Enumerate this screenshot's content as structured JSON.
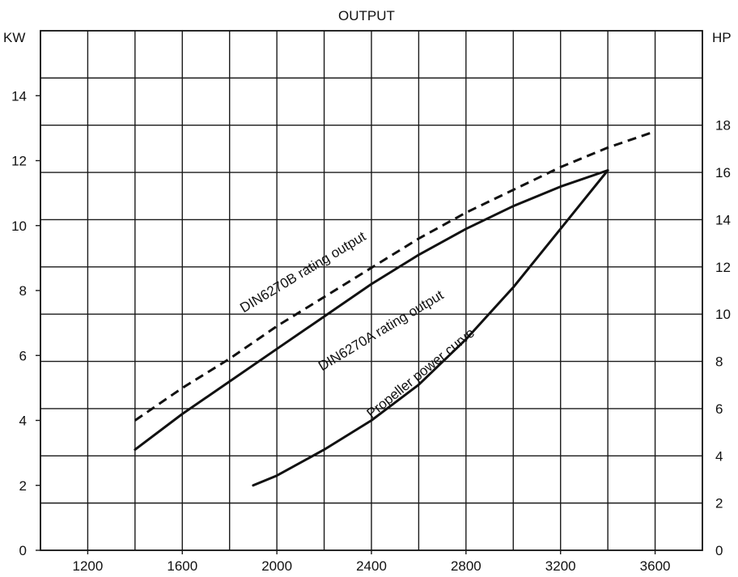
{
  "chart_data": {
    "type": "line",
    "title": "OUTPUT",
    "xlabel": "",
    "ylabel_left": "KW",
    "ylabel_right": "HP",
    "xlim": [
      1000,
      3800
    ],
    "ylim_left": [
      0,
      16
    ],
    "ylim_right": [
      0,
      22
    ],
    "x_ticks": [
      1200,
      1600,
      2000,
      2400,
      2800,
      3200,
      3600
    ],
    "y_ticks_left": [
      0,
      2,
      4,
      6,
      8,
      10,
      12,
      14
    ],
    "y_ticks_right": [
      0,
      2,
      4,
      6,
      8,
      10,
      12,
      14,
      16,
      18
    ],
    "grid": true,
    "series": [
      {
        "name": "DIN6270B rating output",
        "style": "dashed",
        "x": [
          1400,
          1600,
          1800,
          2000,
          2200,
          2400,
          2600,
          2800,
          3000,
          3200,
          3400,
          3600
        ],
        "y": [
          4.0,
          5.0,
          5.9,
          6.9,
          7.8,
          8.7,
          9.6,
          10.4,
          11.1,
          11.8,
          12.4,
          12.9
        ]
      },
      {
        "name": "DIN6270A rating output",
        "style": "solid",
        "x": [
          1400,
          1600,
          1800,
          2000,
          2200,
          2400,
          2600,
          2800,
          3000,
          3200,
          3400
        ],
        "y": [
          3.1,
          4.2,
          5.2,
          6.2,
          7.2,
          8.2,
          9.1,
          9.9,
          10.6,
          11.2,
          11.7
        ]
      },
      {
        "name": "Propeller power curve",
        "style": "solid",
        "x": [
          1900,
          2000,
          2200,
          2400,
          2600,
          2800,
          3000,
          3200,
          3400
        ],
        "y": [
          2.0,
          2.3,
          3.1,
          4.0,
          5.1,
          6.5,
          8.1,
          9.9,
          11.7
        ]
      }
    ],
    "annotations": [
      {
        "text": "DIN6270B rating output",
        "at_x": 2120,
        "at_y": 8.45,
        "angle": -31
      },
      {
        "text": "DIN6270A rating output",
        "at_x": 2450,
        "at_y": 6.65,
        "angle": -31
      },
      {
        "text": "Propeller power curve",
        "at_x": 2620,
        "at_y": 5.35,
        "angle": -39
      }
    ]
  }
}
